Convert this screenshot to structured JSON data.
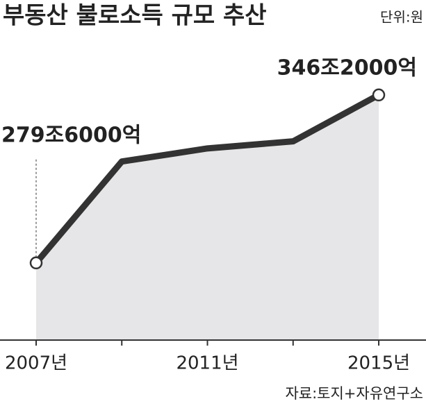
{
  "chart_data": {
    "type": "line",
    "title": "부동산 불로소득 규모 추산",
    "unit": "단위:원",
    "source": "자료:토지+자유연구소",
    "categories": [
      "2007년",
      null,
      "2011년",
      null,
      "2015년"
    ],
    "values": [
      279.6,
      319.8,
      325.0,
      327.8,
      346.2
    ],
    "value_labels": [
      "279조6000억",
      null,
      null,
      null,
      "346조2000억"
    ],
    "color": "#333333",
    "area_color": "#e6e6e8",
    "ylim": [
      249,
      350
    ]
  }
}
